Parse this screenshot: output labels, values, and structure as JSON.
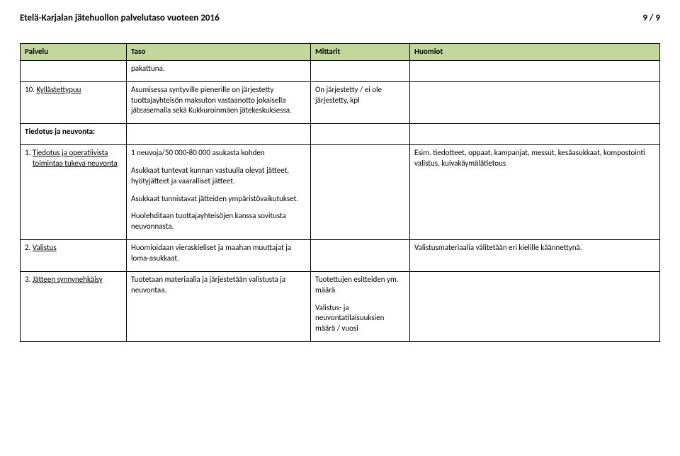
{
  "header": {
    "title": "Etelä-Karjalan jätehuollon palvelutaso  vuoteen 2016",
    "page_indicator": "9 / 9"
  },
  "table": {
    "header_bg": "#c3d69b",
    "columns": {
      "c1": "Palvelu",
      "c2": "Taso",
      "c3": "Mittarit",
      "c4": "Huomiot"
    },
    "rows": {
      "r1": {
        "c2": "pakattuna."
      },
      "r2": {
        "label": "10.",
        "label_link": "Kyllästettypuu",
        "c2": "Asumisessa syntyville pienerille on järjestetty tuottajayhteisön maksuton vastaanotto jokaisella jäteasemalla sekä Kukkuroinmäen jätekeskuksessa.",
        "c3": "On järjestetty / ei ole järjestetty, kpl"
      },
      "section1": {
        "label": "Tiedotus ja neuvonta:"
      },
      "r3": {
        "label": "1.",
        "label_link1": "Tiedotus ja operatiivista",
        "label_link2": "toimintaa tukeva neuvonta",
        "c2p1": "1 neuvoja/50 000-80 000 asukasta kohden",
        "c2p2": "Asukkaat tuntevat kunnan vastuulla olevat jätteet, hyötyjätteet ja vaaralliset jätteet.",
        "c2p3": "Asukkaat tunnistavat jätteiden ympäristövaikutukset.",
        "c2p4": "Huolehditaan tuottajayhteisöjen kanssa sovitusta neuvonnasta.",
        "c4": "Esim. tiedotteet, oppaat, kampanjat, messut, kesäasukkaat, kompostointi valistus, kuivakäymälätietous"
      },
      "r4": {
        "label": "2.",
        "label_link": "Valistus",
        "c2": "Huomioidaan vieraskieliset ja maahan muuttajat ja loma-asukkaat.",
        "c4": "Valistusmateriaalia välitetään eri kielille käännettynä."
      },
      "r5": {
        "label": "3.",
        "label_link": "Jätteen synnynehkäisy",
        "c2": "Tuotetaan materiaalia ja järjestetään valistusta ja neuvontaa.",
        "c3p1": "Tuotettujen esitteiden ym. määrä",
        "c3p2": "Valistus- ja neuvontatilaisuuksien määrä / vuosi"
      }
    }
  }
}
